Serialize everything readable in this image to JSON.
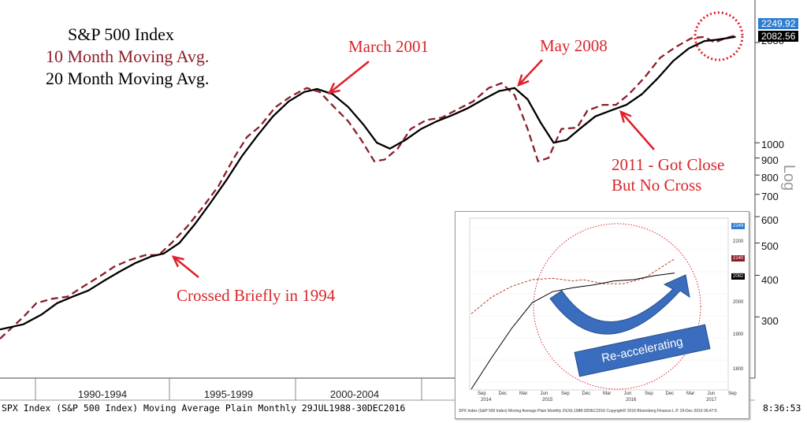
{
  "chart_data": [
    {
      "type": "line",
      "log_scale": true,
      "legend": {
        "title": "S&P 500 Index",
        "series1": "10 Month Moving Avg.",
        "series2": "20 Month Moving Avg."
      },
      "x_categories": [
        "1990-1994",
        "1995-1999",
        "2000-2004"
      ],
      "y_axis_label": "Log",
      "y_ticks": [
        "2000",
        "1000",
        "900",
        "800",
        "700",
        "600",
        "500",
        "400",
        "300"
      ],
      "last_values": {
        "series1": "2249.92",
        "series2": "2082.56"
      },
      "series": [
        {
          "name": "10 Month Moving Avg.",
          "color": "#8b1e2a",
          "style": "dashed",
          "points": [
            [
              1988.6,
              258
            ],
            [
              1989.5,
              300
            ],
            [
              1990.0,
              330
            ],
            [
              1990.6,
              340
            ],
            [
              1991.2,
              345
            ],
            [
              1991.8,
              370
            ],
            [
              1992.5,
              400
            ],
            [
              1993.0,
              425
            ],
            [
              1993.6,
              445
            ],
            [
              1994.2,
              460
            ],
            [
              1994.7,
              460
            ],
            [
              1995.2,
              500
            ],
            [
              1995.8,
              560
            ],
            [
              1996.4,
              640
            ],
            [
              1997.0,
              740
            ],
            [
              1997.6,
              900
            ],
            [
              1998.1,
              1040
            ],
            [
              1998.6,
              1120
            ],
            [
              1999.2,
              1280
            ],
            [
              1999.8,
              1380
            ],
            [
              2000.4,
              1460
            ],
            [
              2000.9,
              1420
            ],
            [
              2001.5,
              1270
            ],
            [
              2002.0,
              1160
            ],
            [
              2002.5,
              1020
            ],
            [
              2003.0,
              880
            ],
            [
              2003.4,
              890
            ],
            [
              2003.9,
              960
            ],
            [
              2004.4,
              1100
            ],
            [
              2005.0,
              1170
            ],
            [
              2005.6,
              1190
            ],
            [
              2006.2,
              1260
            ],
            [
              2006.8,
              1330
            ],
            [
              2007.4,
              1460
            ],
            [
              2007.9,
              1510
            ],
            [
              2008.4,
              1390
            ],
            [
              2008.9,
              1100
            ],
            [
              2009.3,
              880
            ],
            [
              2009.7,
              900
            ],
            [
              2010.2,
              1100
            ],
            [
              2010.8,
              1110
            ],
            [
              2011.2,
              1250
            ],
            [
              2011.8,
              1300
            ],
            [
              2012.3,
              1300
            ],
            [
              2012.8,
              1400
            ],
            [
              2013.4,
              1570
            ],
            [
              2014.0,
              1800
            ],
            [
              2014.6,
              1940
            ],
            [
              2015.2,
              2060
            ],
            [
              2015.7,
              2080
            ],
            [
              2016.1,
              2000
            ],
            [
              2016.5,
              2060
            ],
            [
              2016.9,
              2100
            ]
          ]
        },
        {
          "name": "20 Month Moving Avg.",
          "color": "#000000",
          "style": "solid",
          "points": [
            [
              1988.6,
              275
            ],
            [
              1989.5,
              285
            ],
            [
              1990.2,
              305
            ],
            [
              1990.8,
              330
            ],
            [
              1991.4,
              345
            ],
            [
              1992.0,
              360
            ],
            [
              1992.6,
              385
            ],
            [
              1993.2,
              410
            ],
            [
              1993.8,
              435
            ],
            [
              1994.4,
              455
            ],
            [
              1994.9,
              465
            ],
            [
              1995.5,
              500
            ],
            [
              1996.1,
              570
            ],
            [
              1996.7,
              660
            ],
            [
              1997.3,
              770
            ],
            [
              1997.9,
              910
            ],
            [
              1998.5,
              1050
            ],
            [
              1999.1,
              1200
            ],
            [
              1999.7,
              1330
            ],
            [
              2000.3,
              1420
            ],
            [
              2000.8,
              1450
            ],
            [
              2001.4,
              1400
            ],
            [
              2002.0,
              1280
            ],
            [
              2002.6,
              1130
            ],
            [
              2003.1,
              1000
            ],
            [
              2003.6,
              960
            ],
            [
              2004.2,
              1020
            ],
            [
              2004.8,
              1100
            ],
            [
              2005.4,
              1160
            ],
            [
              2006.0,
              1210
            ],
            [
              2006.6,
              1270
            ],
            [
              2007.2,
              1350
            ],
            [
              2007.8,
              1430
            ],
            [
              2008.4,
              1460
            ],
            [
              2008.9,
              1350
            ],
            [
              2009.4,
              1150
            ],
            [
              2009.9,
              1000
            ],
            [
              2010.4,
              1020
            ],
            [
              2010.9,
              1100
            ],
            [
              2011.5,
              1200
            ],
            [
              2012.1,
              1250
            ],
            [
              2012.7,
              1300
            ],
            [
              2013.3,
              1400
            ],
            [
              2013.9,
              1560
            ],
            [
              2014.5,
              1760
            ],
            [
              2015.1,
              1920
            ],
            [
              2015.7,
              2020
            ],
            [
              2016.2,
              2040
            ],
            [
              2016.9,
              2080
            ]
          ]
        }
      ],
      "annotations": [
        {
          "text": "March 2001"
        },
        {
          "text": "May 2008"
        },
        {
          "text": "2011 - Got Close\nBut No Cross"
        },
        {
          "text": "Crossed Briefly in 1994"
        }
      ],
      "footer": "SPX Index (S&P 500 Index) Moving Average Plain  Monthly 29JUL1988-30DEC2016",
      "footer_time": "8:36:53"
    },
    {
      "type": "line",
      "name": "inset",
      "log_scale": true,
      "x_labels_top": [
        "Sep",
        "Dec",
        "Mar",
        "Jun",
        "Sep",
        "Dec",
        "Mar",
        "Jun",
        "Sep",
        "Dec",
        "Mar",
        "Jun",
        "Sep"
      ],
      "x_labels_years": [
        "2014",
        "2015",
        "2016",
        "2017"
      ],
      "y_ticks": [
        "2200",
        "2100",
        "2000",
        "1900",
        "1800"
      ],
      "badges": [
        "2249",
        "2140",
        "2082"
      ],
      "label": "Re-accelerating",
      "footer": "SPX Index (S&P 500 Index) Moving Average Plain  Monthly 29JUL1988-30DEC2016   Copyright© 2016 Bloomberg Finance L.P.   29-Dec-2016 06:47:5",
      "series": [
        {
          "name": "",
          "style": "dashed",
          "color": "#c0392b",
          "points": [
            [
              0,
              1950
            ],
            [
              0.1,
              2010
            ],
            [
              0.2,
              2050
            ],
            [
              0.3,
              2075
            ],
            [
              0.4,
              2080
            ],
            [
              0.5,
              2070
            ],
            [
              0.55,
              2075
            ],
            [
              0.65,
              2060
            ],
            [
              0.75,
              2060
            ],
            [
              0.85,
              2080
            ],
            [
              0.95,
              2130
            ],
            [
              1.0,
              2155
            ]
          ]
        },
        {
          "name": "",
          "style": "solid",
          "color": "#000000",
          "points": [
            [
              0,
              1700
            ],
            [
              0.1,
              1800
            ],
            [
              0.2,
              1900
            ],
            [
              0.3,
              1990
            ],
            [
              0.4,
              2030
            ],
            [
              0.5,
              2045
            ],
            [
              0.6,
              2055
            ],
            [
              0.7,
              2070
            ],
            [
              0.8,
              2075
            ],
            [
              0.9,
              2090
            ],
            [
              1.0,
              2100
            ]
          ]
        }
      ]
    }
  ]
}
